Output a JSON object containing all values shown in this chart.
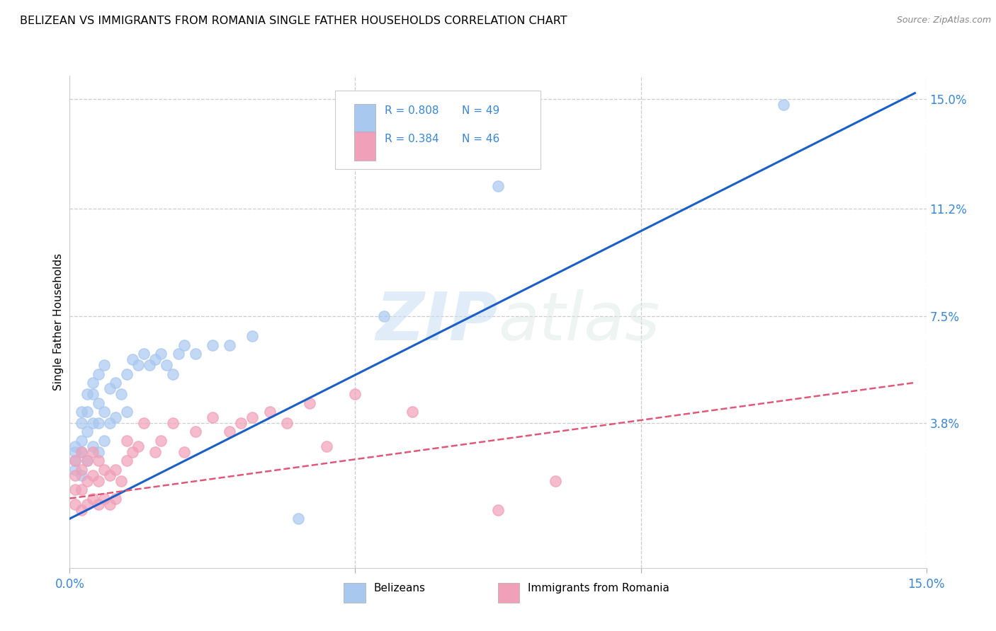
{
  "title": "BELIZEAN VS IMMIGRANTS FROM ROMANIA SINGLE FATHER HOUSEHOLDS CORRELATION CHART",
  "source": "Source: ZipAtlas.com",
  "ylabel": "Single Father Households",
  "ytick_labels": [
    "3.8%",
    "7.5%",
    "11.2%",
    "15.0%"
  ],
  "ytick_values": [
    0.038,
    0.075,
    0.112,
    0.15
  ],
  "xmin": 0.0,
  "xmax": 0.15,
  "ymin": -0.012,
  "ymax": 0.158,
  "legend_blue_r": "R = 0.808",
  "legend_blue_n": "N = 49",
  "legend_pink_r": "R = 0.384",
  "legend_pink_n": "N = 46",
  "legend_label_blue": "Belizeans",
  "legend_label_pink": "Immigrants from Romania",
  "blue_color": "#a8c8f0",
  "pink_color": "#f0a0b8",
  "blue_line_color": "#1a5fc8",
  "pink_line_color": "#e05878",
  "tick_label_color": "#3a86d4",
  "scatter_blue_x": [
    0.001,
    0.001,
    0.001,
    0.001,
    0.002,
    0.002,
    0.002,
    0.002,
    0.002,
    0.003,
    0.003,
    0.003,
    0.003,
    0.004,
    0.004,
    0.004,
    0.004,
    0.005,
    0.005,
    0.005,
    0.005,
    0.006,
    0.006,
    0.006,
    0.007,
    0.007,
    0.008,
    0.008,
    0.009,
    0.01,
    0.01,
    0.011,
    0.012,
    0.013,
    0.014,
    0.015,
    0.016,
    0.017,
    0.018,
    0.019,
    0.02,
    0.022,
    0.025,
    0.028,
    0.032,
    0.04,
    0.055,
    0.075,
    0.125
  ],
  "scatter_blue_y": [
    0.022,
    0.025,
    0.028,
    0.03,
    0.02,
    0.028,
    0.032,
    0.038,
    0.042,
    0.025,
    0.035,
    0.042,
    0.048,
    0.03,
    0.038,
    0.048,
    0.052,
    0.028,
    0.038,
    0.045,
    0.055,
    0.032,
    0.042,
    0.058,
    0.038,
    0.05,
    0.04,
    0.052,
    0.048,
    0.042,
    0.055,
    0.06,
    0.058,
    0.062,
    0.058,
    0.06,
    0.062,
    0.058,
    0.055,
    0.062,
    0.065,
    0.062,
    0.065,
    0.065,
    0.068,
    0.005,
    0.075,
    0.12,
    0.148
  ],
  "scatter_pink_x": [
    0.001,
    0.001,
    0.001,
    0.001,
    0.002,
    0.002,
    0.002,
    0.002,
    0.003,
    0.003,
    0.003,
    0.004,
    0.004,
    0.004,
    0.005,
    0.005,
    0.005,
    0.006,
    0.006,
    0.007,
    0.007,
    0.008,
    0.008,
    0.009,
    0.01,
    0.01,
    0.011,
    0.012,
    0.013,
    0.015,
    0.016,
    0.018,
    0.02,
    0.022,
    0.025,
    0.028,
    0.03,
    0.032,
    0.035,
    0.038,
    0.042,
    0.045,
    0.05,
    0.06,
    0.075,
    0.085
  ],
  "scatter_pink_y": [
    0.01,
    0.015,
    0.02,
    0.025,
    0.008,
    0.015,
    0.022,
    0.028,
    0.01,
    0.018,
    0.025,
    0.012,
    0.02,
    0.028,
    0.01,
    0.018,
    0.025,
    0.012,
    0.022,
    0.01,
    0.02,
    0.012,
    0.022,
    0.018,
    0.025,
    0.032,
    0.028,
    0.03,
    0.038,
    0.028,
    0.032,
    0.038,
    0.028,
    0.035,
    0.04,
    0.035,
    0.038,
    0.04,
    0.042,
    0.038,
    0.045,
    0.03,
    0.048,
    0.042,
    0.008,
    0.018
  ],
  "blue_line_x": [
    0.0,
    0.148
  ],
  "blue_line_y": [
    0.005,
    0.152
  ],
  "pink_line_x": [
    0.0,
    0.148
  ],
  "pink_line_y": [
    0.012,
    0.052
  ]
}
